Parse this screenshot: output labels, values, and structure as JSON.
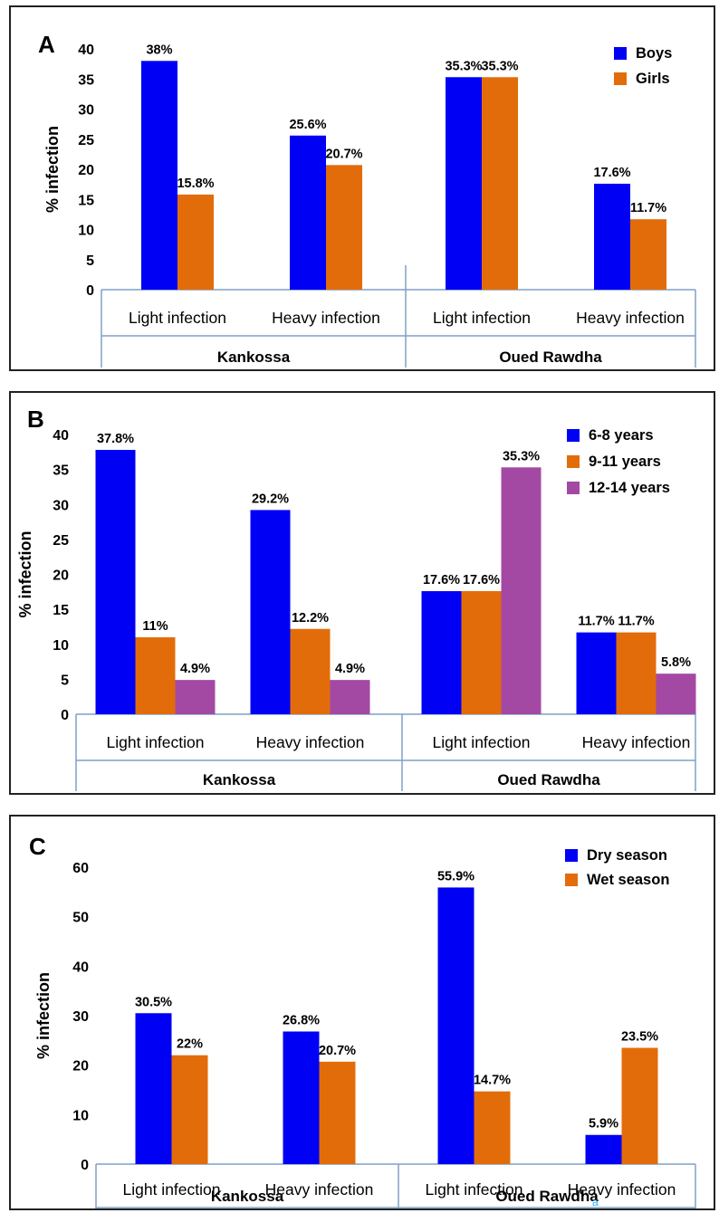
{
  "chart_data": [
    {
      "type": "bar",
      "panel_label": "A",
      "ylabel": "% infection",
      "ylim": [
        0,
        40
      ],
      "yticks": [
        0,
        5,
        10,
        15,
        20,
        25,
        30,
        35,
        40
      ],
      "groups": [
        {
          "name": "Kankossa",
          "categories": [
            "Light infection",
            "Heavy infection"
          ]
        },
        {
          "name": "Oued Rawdha",
          "categories": [
            "Light infection",
            "Heavy infection"
          ]
        }
      ],
      "legend_position": "top-right",
      "series": [
        {
          "name": "Boys",
          "color": "#0000f5",
          "values": [
            38,
            25.6,
            35.3,
            17.6
          ],
          "labels": [
            "38%",
            "25.6%",
            "35.3%",
            "17.6%"
          ]
        },
        {
          "name": "Girls",
          "color": "#e36c0a",
          "values": [
            15.8,
            20.7,
            35.3,
            11.7
          ],
          "labels": [
            "15.8%",
            "20.7%",
            "35.3%",
            "11.7%"
          ]
        }
      ]
    },
    {
      "type": "bar",
      "panel_label": "B",
      "ylabel": "% infection",
      "ylim": [
        0,
        40
      ],
      "yticks": [
        0,
        5,
        10,
        15,
        20,
        25,
        30,
        35,
        40
      ],
      "groups": [
        {
          "name": "Kankossa",
          "categories": [
            "Light infection",
            "Heavy infection"
          ]
        },
        {
          "name": "Oued Rawdha",
          "categories": [
            "Light infection",
            "Heavy infection"
          ]
        }
      ],
      "legend_position": "top-right",
      "series": [
        {
          "name": "6-8 years",
          "color": "#0000f5",
          "values": [
            37.8,
            29.2,
            17.6,
            11.7
          ],
          "labels": [
            "37.8%",
            "29.2%",
            "17.6%",
            "11.7%"
          ]
        },
        {
          "name": "9-11 years",
          "color": "#e36c0a",
          "values": [
            11,
            12.2,
            17.6,
            11.7
          ],
          "labels": [
            "11%",
            "12.2%",
            "17.6%",
            "11.7%"
          ]
        },
        {
          "name": "12-14 years",
          "color": "#a349a4",
          "values": [
            4.9,
            4.9,
            35.3,
            5.8
          ],
          "labels": [
            "4.9%",
            "4.9%",
            "35.3%",
            "5.8%"
          ]
        }
      ]
    },
    {
      "type": "bar",
      "panel_label": "C",
      "ylabel": "% infection",
      "ylim": [
        0,
        60
      ],
      "yticks": [
        0,
        10,
        20,
        30,
        40,
        50,
        60
      ],
      "groups": [
        {
          "name": "Kankossa",
          "categories": [
            "Light infection",
            "Heavy infection"
          ]
        },
        {
          "name": "Oued Rawdha",
          "categories": [
            "Light infection",
            "Heavy infection"
          ]
        }
      ],
      "legend_position": "top-right",
      "annotation": "a",
      "series": [
        {
          "name": "Dry season",
          "color": "#0000f5",
          "values": [
            30.5,
            26.8,
            55.9,
            5.9
          ],
          "labels": [
            "30.5%",
            "26.8%",
            "55.9%",
            "5.9%"
          ]
        },
        {
          "name": "Wet season",
          "color": "#e36c0a",
          "values": [
            22,
            20.7,
            14.7,
            23.5
          ],
          "labels": [
            "22%",
            "20.7%",
            "14.7%",
            "23.5%"
          ]
        }
      ]
    }
  ]
}
